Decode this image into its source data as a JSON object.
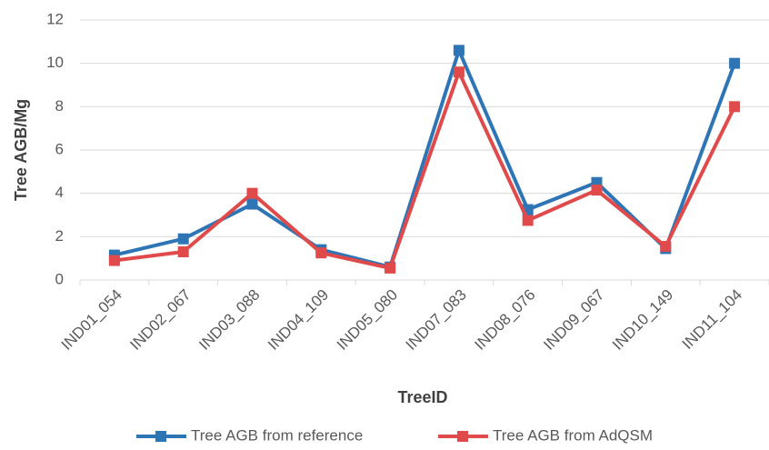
{
  "chart_data": {
    "type": "line",
    "x_label": "TreeID",
    "y_label": "Tree AGB/Mg",
    "categories": [
      "IND01_054",
      "IND02_067",
      "IND03_088",
      "IND04_109",
      "IND05_080",
      "IND07_083",
      "IND08_076",
      "IND09_067",
      "IND10_149",
      "IND11_104"
    ],
    "series": [
      {
        "name": "Tree AGB from reference",
        "color": "#2e75b6",
        "values": [
          1.15,
          1.9,
          3.5,
          1.4,
          0.6,
          10.6,
          3.25,
          4.5,
          1.45,
          10.0
        ]
      },
      {
        "name": "Tree AGB from AdQSM",
        "color": "#e04a4a",
        "values": [
          0.9,
          1.3,
          4.0,
          1.25,
          0.55,
          9.6,
          2.75,
          4.15,
          1.55,
          8.0
        ]
      }
    ],
    "ylim": [
      0,
      12
    ],
    "yticks": [
      0,
      2,
      4,
      6,
      8,
      10,
      12
    ],
    "grid": true,
    "legend": "bottom"
  }
}
